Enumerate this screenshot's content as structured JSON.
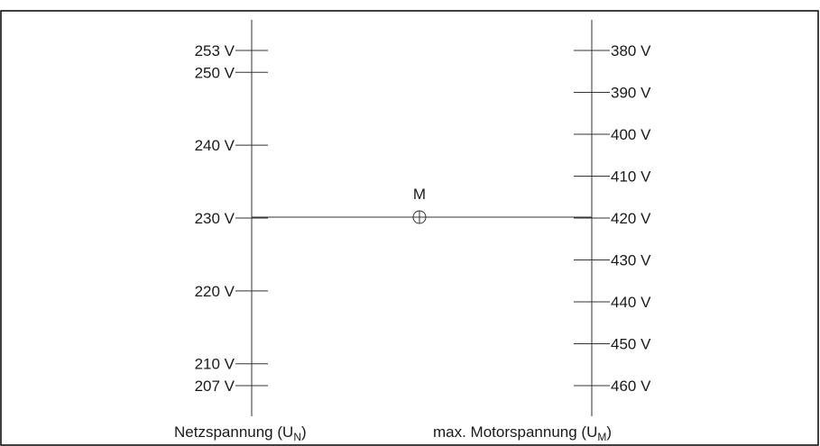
{
  "left_scale": {
    "ticks": [
      "253 V",
      "250 V",
      "240 V",
      "230 V",
      "220 V",
      "210 V",
      "207 V"
    ],
    "values": [
      253,
      250,
      240,
      230,
      220,
      210,
      207
    ],
    "caption_main": "Netzspannung (U",
    "caption_sub": "N",
    "caption_end": ")"
  },
  "right_scale": {
    "ticks": [
      "380 V",
      "390 V",
      "400 V",
      "410 V",
      "420 V",
      "430 V",
      "440 V",
      "450 V",
      "460 V"
    ],
    "values": [
      380,
      390,
      400,
      410,
      420,
      430,
      440,
      450,
      460
    ],
    "caption_main": "max. Motorspannung (U",
    "caption_sub": "M",
    "caption_end": ")"
  },
  "connector": {
    "label": "M",
    "from_value": 230,
    "to_value": 420
  }
}
